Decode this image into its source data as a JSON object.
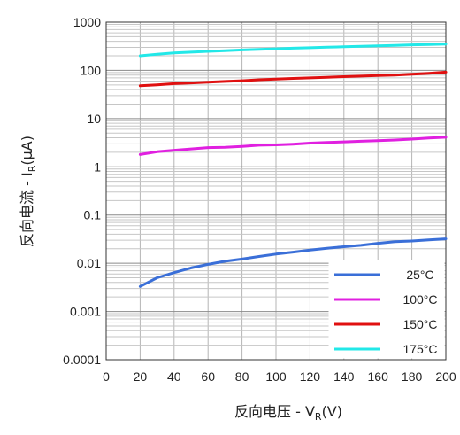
{
  "chart_data": {
    "type": "line",
    "xlabel": "反向电压 - VR(V)",
    "xlabel_main": "反向电压 - V",
    "xlabel_sub": "R",
    "xlabel_tail": "(V)",
    "ylabel": "反向电流 - IR(μA)",
    "ylabel_main": "反向电流 - I",
    "ylabel_sub": "R",
    "ylabel_tail": "(μA)",
    "xlim": [
      0,
      200
    ],
    "ylim": [
      0.0001,
      1000
    ],
    "yscale": "log",
    "grid": true,
    "legend_position": "bottom-right",
    "x_ticks": [
      "0",
      "20",
      "40",
      "60",
      "80",
      "100",
      "120",
      "140",
      "160",
      "180",
      "200"
    ],
    "y_ticks": [
      "0.0001",
      "0.001",
      "0.01",
      "0.1",
      "1",
      "10",
      "100",
      "1000"
    ],
    "x": [
      20,
      30,
      40,
      50,
      60,
      70,
      80,
      90,
      100,
      110,
      120,
      130,
      140,
      150,
      160,
      170,
      180,
      190,
      200
    ],
    "series": [
      {
        "name": "25°C",
        "color": "#3a6fd8",
        "values": [
          0.0033,
          0.005,
          0.0064,
          0.008,
          0.0095,
          0.011,
          0.0122,
          0.0138,
          0.0155,
          0.017,
          0.0188,
          0.0205,
          0.022,
          0.0235,
          0.026,
          0.028,
          0.029,
          0.0305,
          0.032
        ]
      },
      {
        "name": "100°C",
        "color": "#e020e0",
        "values": [
          1.8,
          2.05,
          2.2,
          2.35,
          2.5,
          2.55,
          2.65,
          2.8,
          2.85,
          2.95,
          3.1,
          3.2,
          3.3,
          3.4,
          3.5,
          3.6,
          3.75,
          3.95,
          4.1
        ]
      },
      {
        "name": "150°C",
        "color": "#e01010",
        "values": [
          48,
          50,
          53,
          55,
          57,
          59,
          61,
          64,
          66,
          68,
          70,
          72,
          74,
          76,
          78,
          80,
          83,
          87,
          92
        ]
      },
      {
        "name": "175°C",
        "color": "#22e8e8",
        "values": [
          200,
          215,
          230,
          238,
          248,
          256,
          265,
          272,
          280,
          288,
          295,
          302,
          308,
          315,
          322,
          330,
          338,
          345,
          352
        ]
      }
    ]
  }
}
